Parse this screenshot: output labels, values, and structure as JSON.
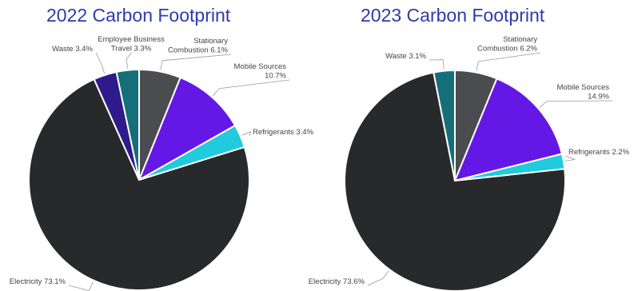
{
  "chart_data": [
    {
      "type": "pie",
      "title": "2022 Carbon Footprint",
      "slices": [
        {
          "label": [
            "Stationary",
            "Combustion 6.1%"
          ],
          "value": 6.1,
          "color": "#4a4c4f"
        },
        {
          "label": [
            "Mobile Sources",
            "10.7%"
          ],
          "value": 10.7,
          "color": "#6418e6"
        },
        {
          "label": [
            "Refrigerants 3.4%"
          ],
          "value": 3.4,
          "color": "#1fcbdc"
        },
        {
          "label": [
            "Electricity 73.1%"
          ],
          "value": 73.1,
          "color": "#27292a"
        },
        {
          "label": [
            "Waste 3.4%"
          ],
          "value": 3.4,
          "color": "#2f1a8c"
        },
        {
          "label": [
            "Employee Business",
            "Travel 3.3%"
          ],
          "value": 3.3,
          "color": "#146f7a"
        }
      ]
    },
    {
      "type": "pie",
      "title": "2023 Carbon Footprint",
      "slices": [
        {
          "label": [
            "Stationary",
            "Combustion 6.2%"
          ],
          "value": 6.2,
          "color": "#4a4c4f"
        },
        {
          "label": [
            "Mobile Sources",
            "14.9%"
          ],
          "value": 14.9,
          "color": "#6418e6"
        },
        {
          "label": [
            "Refrigerants 2.2%"
          ],
          "value": 2.2,
          "color": "#1fcbdc"
        },
        {
          "label": [
            "Electricity 73.6%"
          ],
          "value": 73.6,
          "color": "#27292a"
        },
        {
          "label": [
            "Waste 3.1%"
          ],
          "value": 3.1,
          "color": "#146f7a"
        }
      ]
    }
  ]
}
